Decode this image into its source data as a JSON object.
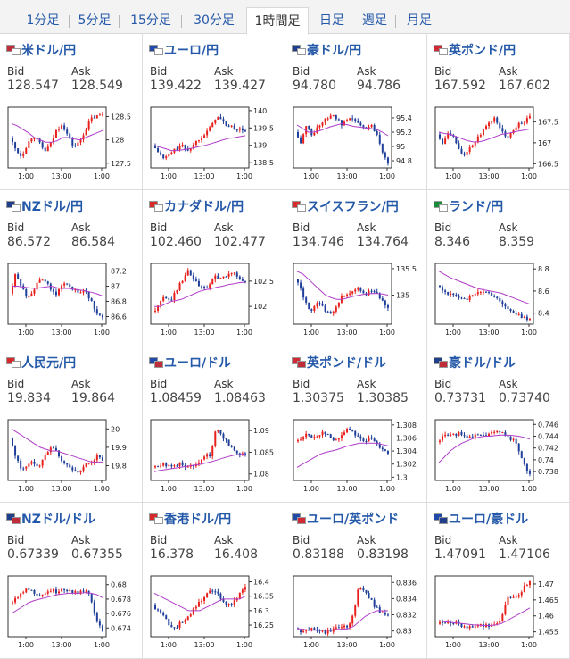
{
  "tabs": [
    {
      "label": "1分足",
      "active": false
    },
    {
      "label": "5分足",
      "active": false
    },
    {
      "label": "15分足",
      "active": false
    },
    {
      "label": "30分足",
      "active": false
    },
    {
      "label": "1時間足",
      "active": true
    },
    {
      "label": "日足",
      "active": false
    },
    {
      "label": "週足",
      "active": false
    },
    {
      "label": "月足",
      "active": false
    }
  ],
  "bid_label": "Bid",
  "ask_label": "Ask",
  "colors": {
    "link": "#2458a8",
    "up": "#e8201c",
    "down": "#1f3f9a",
    "ma": "#b03cc8",
    "trend": "#1a9a9a"
  },
  "pairs": [
    {
      "name": "米ドル/円",
      "flags": [
        "#bf2c3a",
        "#ffffff"
      ],
      "bid": "128.547",
      "ask": "128.549"
    },
    {
      "name": "ユーロ/円",
      "flags": [
        "#1f4aa8",
        "#ffffff"
      ],
      "bid": "139.422",
      "ask": "139.427"
    },
    {
      "name": "豪ドル/円",
      "flags": [
        "#1f3f8a",
        "#ffffff"
      ],
      "bid": "94.780",
      "ask": "94.786"
    },
    {
      "name": "英ポンド/円",
      "flags": [
        "#cf2a35",
        "#ffffff"
      ],
      "bid": "167.592",
      "ask": "167.602"
    },
    {
      "name": "NZドル/円",
      "flags": [
        "#1f3f8a",
        "#ffffff"
      ],
      "bid": "86.572",
      "ask": "86.584"
    },
    {
      "name": "カナダドル/円",
      "flags": [
        "#d62a2a",
        "#ffffff"
      ],
      "bid": "102.460",
      "ask": "102.477"
    },
    {
      "name": "スイスフラン/円",
      "flags": [
        "#d62a2a",
        "#ffffff"
      ],
      "bid": "134.746",
      "ask": "134.764"
    },
    {
      "name": "ランド/円",
      "flags": [
        "#1b8a3a",
        "#ffffff"
      ],
      "bid": "8.346",
      "ask": "8.359"
    },
    {
      "name": "人民元/円",
      "flags": [
        "#d62a2a",
        "#ffffff"
      ],
      "bid": "19.834",
      "ask": "19.864"
    },
    {
      "name": "ユーロ/ドル",
      "flags": [
        "#1f4aa8",
        "#bf2c3a"
      ],
      "bid": "1.08459",
      "ask": "1.08463"
    },
    {
      "name": "英ポンド/ドル",
      "flags": [
        "#cf2a35",
        "#bf2c3a"
      ],
      "bid": "1.30375",
      "ask": "1.30385"
    },
    {
      "name": "豪ドル/ドル",
      "flags": [
        "#1f3f8a",
        "#bf2c3a"
      ],
      "bid": "0.73731",
      "ask": "0.73740"
    },
    {
      "name": "NZドル/ドル",
      "flags": [
        "#1f3f8a",
        "#bf2c3a"
      ],
      "bid": "0.67339",
      "ask": "0.67355"
    },
    {
      "name": "香港ドル/円",
      "flags": [
        "#d62a2a",
        "#ffffff"
      ],
      "bid": "16.378",
      "ask": "16.408"
    },
    {
      "name": "ユーロ/英ポンド",
      "flags": [
        "#1f4aa8",
        "#cf2a35"
      ],
      "bid": "0.83188",
      "ask": "0.83198"
    },
    {
      "name": "ユーロ/豪ドル",
      "flags": [
        "#1f4aa8",
        "#1f3f8a"
      ],
      "bid": "1.47091",
      "ask": "1.47106"
    }
  ],
  "chart_data": [
    {
      "type": "candlestick",
      "title": "米ドル/円",
      "x_ticks": [
        "1:00",
        "13:00",
        "1:00"
      ],
      "y_ticks": [
        127.5,
        128,
        128.5
      ],
      "ylim": [
        127.4,
        128.7
      ],
      "path": [
        128.05,
        127.8,
        127.65,
        127.9,
        128.1,
        127.95,
        127.75,
        127.9,
        128.2,
        128.35,
        128.1,
        127.85,
        127.95,
        128.2,
        128.45,
        128.5,
        128.55
      ],
      "ma": [
        128.35,
        128.3,
        128.22,
        128.15,
        128.05,
        128.0,
        127.95,
        127.95,
        127.98,
        128.05,
        128.05,
        128.02,
        128.0,
        128.05,
        128.1,
        128.15,
        128.2
      ]
    },
    {
      "type": "candlestick",
      "title": "ユーロ/円",
      "x_ticks": [
        "1:00",
        "13:00",
        "1:00"
      ],
      "y_ticks": [
        138.5,
        139,
        139.5,
        140
      ],
      "ylim": [
        138.35,
        140.1
      ],
      "path": [
        139.0,
        138.8,
        138.6,
        138.75,
        138.9,
        139.0,
        138.85,
        139.0,
        139.2,
        139.35,
        139.5,
        139.85,
        139.7,
        139.55,
        139.5,
        139.45,
        139.42
      ],
      "ma": [
        139.0,
        138.95,
        138.9,
        138.85,
        138.85,
        138.87,
        138.9,
        138.93,
        138.97,
        139.0,
        139.05,
        139.1,
        139.15,
        139.2,
        139.22,
        139.25,
        139.28
      ]
    },
    {
      "type": "candlestick",
      "title": "豪ドル/円",
      "x_ticks": [
        "1:00",
        "13:00",
        "1:00"
      ],
      "y_ticks": [
        94.8,
        95,
        95.2,
        95.4
      ],
      "ylim": [
        94.7,
        95.55
      ],
      "path": [
        95.2,
        95.05,
        95.3,
        95.15,
        95.3,
        95.35,
        95.45,
        95.4,
        95.3,
        95.35,
        95.4,
        95.3,
        95.25,
        95.3,
        95.2,
        94.95,
        94.78
      ],
      "ma": [
        95.3,
        95.25,
        95.2,
        95.2,
        95.22,
        95.25,
        95.28,
        95.3,
        95.32,
        95.3,
        95.28,
        95.27,
        95.26,
        95.25,
        95.24,
        95.2,
        95.15
      ]
    },
    {
      "type": "candlestick",
      "title": "英ポンド/円",
      "x_ticks": [
        "1:00",
        "13:00",
        "1:00"
      ],
      "y_ticks": [
        166.5,
        167,
        167.5
      ],
      "ylim": [
        166.4,
        167.85
      ],
      "path": [
        167.2,
        167.0,
        167.3,
        167.1,
        166.8,
        166.7,
        166.95,
        167.1,
        167.3,
        167.45,
        167.6,
        167.3,
        167.1,
        167.3,
        167.45,
        167.5,
        167.59
      ],
      "ma": [
        167.25,
        167.22,
        167.2,
        167.15,
        167.1,
        167.05,
        167.02,
        167.02,
        167.05,
        167.1,
        167.15,
        167.2,
        167.22,
        167.25,
        167.28,
        167.3,
        167.33
      ]
    },
    {
      "type": "candlestick",
      "title": "NZドル/円",
      "x_ticks": [
        "1:00",
        "13:00",
        "1:00"
      ],
      "y_ticks": [
        86.6,
        86.8,
        87,
        87.2
      ],
      "ylim": [
        86.5,
        87.3
      ],
      "path": [
        86.9,
        87.15,
        87.0,
        86.85,
        86.95,
        87.05,
        87.1,
        86.95,
        86.9,
        87.0,
        87.05,
        86.95,
        86.9,
        86.95,
        86.8,
        86.65,
        86.57
      ],
      "ma": [
        87.0,
        87.0,
        86.99,
        86.98,
        86.97,
        86.98,
        86.99,
        87.0,
        86.98,
        86.97,
        86.97,
        86.96,
        86.95,
        86.94,
        86.92,
        86.9,
        86.87
      ]
    },
    {
      "type": "candlestick",
      "title": "カナダドル/円",
      "x_ticks": [
        "1:00",
        "13:00",
        "1:00"
      ],
      "y_ticks": [
        102,
        102.5
      ],
      "ylim": [
        101.65,
        102.85
      ],
      "path": [
        101.9,
        102.0,
        102.2,
        102.1,
        102.3,
        102.5,
        102.7,
        102.55,
        102.4,
        102.35,
        102.45,
        102.6,
        102.55,
        102.6,
        102.7,
        102.55,
        102.46
      ],
      "ma": [
        102.0,
        102.0,
        102.05,
        102.1,
        102.12,
        102.15,
        102.2,
        102.25,
        102.3,
        102.33,
        102.35,
        102.38,
        102.4,
        102.43,
        102.45,
        102.47,
        102.48
      ]
    },
    {
      "type": "candlestick",
      "title": "スイスフラン/円",
      "x_ticks": [
        "1:00",
        "13:00",
        "1:00"
      ],
      "y_ticks": [
        135,
        135.5
      ],
      "ylim": [
        134.45,
        135.6
      ],
      "path": [
        135.3,
        135.1,
        134.8,
        134.7,
        134.9,
        134.75,
        134.6,
        134.8,
        134.95,
        135.0,
        135.05,
        135.15,
        135.0,
        135.1,
        135.05,
        134.9,
        134.75
      ],
      "ma": [
        135.45,
        135.4,
        135.3,
        135.2,
        135.1,
        135.0,
        134.95,
        134.92,
        134.92,
        134.95,
        134.98,
        135.0,
        135.02,
        135.03,
        135.03,
        135.02,
        135.0
      ]
    },
    {
      "type": "candlestick",
      "title": "ランド/円",
      "x_ticks": [
        "1:00",
        "13:00",
        "1:00"
      ],
      "y_ticks": [
        8.4,
        8.6,
        8.8
      ],
      "ylim": [
        8.3,
        8.85
      ],
      "path": [
        8.65,
        8.6,
        8.58,
        8.55,
        8.55,
        8.53,
        8.55,
        8.58,
        8.6,
        8.58,
        8.55,
        8.5,
        8.45,
        8.4,
        8.38,
        8.36,
        8.35
      ],
      "ma": [
        8.78,
        8.75,
        8.72,
        8.7,
        8.68,
        8.66,
        8.64,
        8.62,
        8.61,
        8.6,
        8.59,
        8.58,
        8.56,
        8.54,
        8.52,
        8.5,
        8.48
      ]
    },
    {
      "type": "candlestick",
      "title": "人民元/円",
      "x_ticks": [
        "1:00",
        "13:00",
        "1:00"
      ],
      "y_ticks": [
        19.8,
        19.9,
        20
      ],
      "ylim": [
        19.72,
        20.05
      ],
      "path": [
        19.95,
        19.85,
        19.78,
        19.8,
        19.82,
        19.8,
        19.85,
        19.9,
        19.88,
        19.82,
        19.8,
        19.78,
        19.76,
        19.8,
        19.82,
        19.85,
        19.83
      ],
      "ma": [
        20.0,
        19.98,
        19.96,
        19.94,
        19.92,
        19.9,
        19.89,
        19.88,
        19.88,
        19.87,
        19.86,
        19.85,
        19.84,
        19.83,
        19.82,
        19.82,
        19.82
      ]
    },
    {
      "type": "candlestick",
      "title": "ユーロ/ドル",
      "x_ticks": [
        "1:00",
        "13:00",
        "1:00"
      ],
      "y_ticks": [
        1.08,
        1.085,
        1.09
      ],
      "ylim": [
        1.0785,
        1.0925
      ],
      "path": [
        1.0815,
        1.082,
        1.0825,
        1.0815,
        1.082,
        1.0825,
        1.0815,
        1.082,
        1.083,
        1.084,
        1.0845,
        1.0905,
        1.089,
        1.087,
        1.0855,
        1.0848,
        1.0846
      ],
      "ma": [
        1.0805,
        1.0808,
        1.081,
        1.0812,
        1.0814,
        1.0816,
        1.0818,
        1.082,
        1.0822,
        1.0825,
        1.0828,
        1.0832,
        1.0836,
        1.084,
        1.0843,
        1.0845,
        1.0846
      ]
    },
    {
      "type": "candlestick",
      "title": "英ポンド/ドル",
      "x_ticks": [
        "1:00",
        "13:00",
        "1:00"
      ],
      "y_ticks": [
        1.3,
        1.302,
        1.304,
        1.306,
        1.308
      ],
      "ylim": [
        1.2995,
        1.3088
      ],
      "path": [
        1.3055,
        1.306,
        1.3065,
        1.306,
        1.3065,
        1.307,
        1.306,
        1.3055,
        1.3065,
        1.3075,
        1.307,
        1.306,
        1.3055,
        1.306,
        1.305,
        1.3045,
        1.3038
      ],
      "ma": [
        1.3015,
        1.302,
        1.3025,
        1.303,
        1.3035,
        1.3038,
        1.304,
        1.3042,
        1.3045,
        1.3048,
        1.305,
        1.3052,
        1.3052,
        1.3052,
        1.3052,
        1.305,
        1.3048
      ]
    },
    {
      "type": "candlestick",
      "title": "豪ドル/ドル",
      "x_ticks": [
        "1:00",
        "13:00",
        "1:00"
      ],
      "y_ticks": [
        0.738,
        0.74,
        0.742,
        0.744,
        0.746
      ],
      "ylim": [
        0.7365,
        0.7468
      ],
      "path": [
        0.743,
        0.7438,
        0.7445,
        0.744,
        0.7445,
        0.744,
        0.7438,
        0.7442,
        0.744,
        0.7445,
        0.7445,
        0.7448,
        0.744,
        0.7435,
        0.742,
        0.7395,
        0.7373
      ],
      "ma": [
        0.7395,
        0.7405,
        0.7415,
        0.7422,
        0.7428,
        0.7432,
        0.7436,
        0.7438,
        0.744,
        0.744,
        0.7441,
        0.7442,
        0.7442,
        0.7441,
        0.744,
        0.7438,
        0.7435
      ]
    },
    {
      "type": "candlestick",
      "title": "NZドル/ドル",
      "x_ticks": [
        "1:00",
        "13:00",
        "1:00"
      ],
      "y_ticks": [
        0.674,
        0.676,
        0.678,
        0.68
      ],
      "ylim": [
        0.6728,
        0.6812
      ],
      "path": [
        0.6775,
        0.678,
        0.679,
        0.6795,
        0.679,
        0.6785,
        0.6788,
        0.6792,
        0.679,
        0.6795,
        0.6792,
        0.679,
        0.6788,
        0.6795,
        0.678,
        0.675,
        0.6734
      ],
      "ma": [
        0.676,
        0.6765,
        0.677,
        0.6775,
        0.6778,
        0.678,
        0.6782,
        0.6784,
        0.6786,
        0.6787,
        0.6788,
        0.6788,
        0.6788,
        0.6789,
        0.6788,
        0.6786,
        0.6782
      ]
    },
    {
      "type": "candlestick",
      "title": "香港ドル/円",
      "x_ticks": [
        "1:00",
        "13:00",
        "1:00"
      ],
      "y_ticks": [
        16.25,
        16.3,
        16.35,
        16.4
      ],
      "ylim": [
        16.21,
        16.42
      ],
      "path": [
        16.32,
        16.3,
        16.28,
        16.25,
        16.24,
        16.26,
        16.28,
        16.3,
        16.33,
        16.35,
        16.37,
        16.36,
        16.34,
        16.32,
        16.33,
        16.36,
        16.38
      ],
      "ma": [
        16.36,
        16.35,
        16.34,
        16.33,
        16.32,
        16.31,
        16.3,
        16.3,
        16.3,
        16.31,
        16.32,
        16.33,
        16.34,
        16.34,
        16.34,
        16.34,
        16.35
      ]
    },
    {
      "type": "candlestick",
      "title": "ユーロ/英ポンド",
      "x_ticks": [
        "1:00",
        "13:00",
        "1:00"
      ],
      "y_ticks": [
        0.83,
        0.832,
        0.834,
        0.836
      ],
      "ylim": [
        0.8293,
        0.8368
      ],
      "path": [
        0.8302,
        0.8298,
        0.83,
        0.8304,
        0.8302,
        0.8298,
        0.83,
        0.8304,
        0.8303,
        0.8306,
        0.8318,
        0.8358,
        0.835,
        0.8338,
        0.8328,
        0.8322,
        0.8319
      ],
      "ma": [
        0.8303,
        0.8302,
        0.8301,
        0.8301,
        0.8301,
        0.8301,
        0.8301,
        0.8302,
        0.8302,
        0.8303,
        0.8306,
        0.8312,
        0.8318,
        0.8322,
        0.8325,
        0.8325,
        0.8325
      ]
    },
    {
      "type": "candlestick",
      "title": "ユーロ/豪ドル",
      "x_ticks": [
        "1:00",
        "13:00",
        "1:00"
      ],
      "y_ticks": [
        1.455,
        1.46,
        1.465,
        1.47
      ],
      "ylim": [
        1.4535,
        1.4725
      ],
      "path": [
        1.4575,
        1.458,
        1.4585,
        1.4578,
        1.457,
        1.4565,
        1.4568,
        1.4572,
        1.4568,
        1.457,
        1.4575,
        1.459,
        1.4655,
        1.466,
        1.4665,
        1.469,
        1.4709
      ],
      "ma": [
        1.4585,
        1.4582,
        1.458,
        1.4578,
        1.4576,
        1.4574,
        1.4572,
        1.4571,
        1.457,
        1.457,
        1.4572,
        1.4576,
        1.4585,
        1.4595,
        1.4605,
        1.4615,
        1.4625
      ]
    }
  ]
}
